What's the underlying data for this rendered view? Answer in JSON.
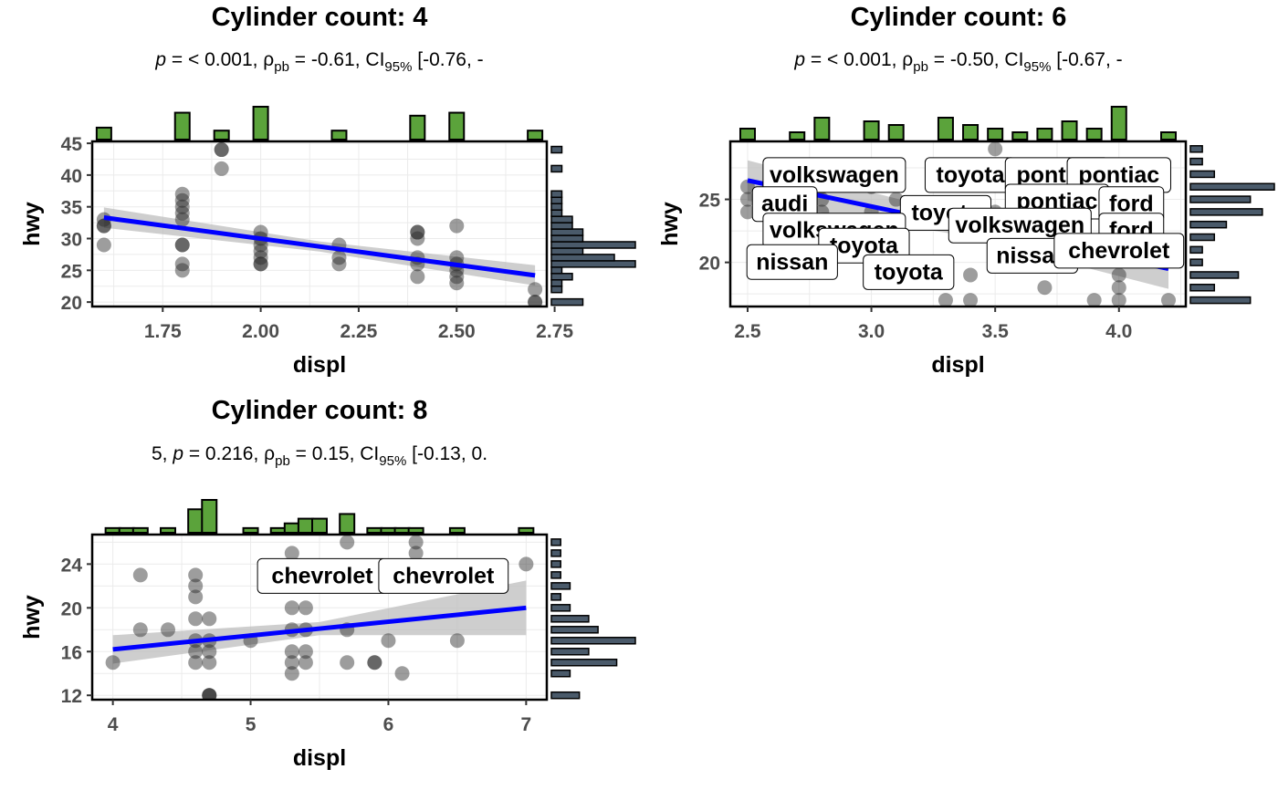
{
  "colors": {
    "points": "#262626",
    "fit_line": "#0000ff",
    "ci_band": "#bdbdbd",
    "x_histogram": "#5ba33b",
    "y_histogram": "#4a5a6a",
    "grid": "#ebebeb",
    "axis_text": "#4d4d4d"
  },
  "chart_data": [
    {
      "type": "scatter",
      "title": "Cylinder count: 4",
      "subtitle": {
        "prefix": "",
        "p": "< 0.001",
        "rho": "-0.61",
        "ci_lo": "-0.76",
        "ci_hi": "-"
      },
      "xlabel": "displ",
      "ylabel": "hwy",
      "xlim": [
        1.57,
        2.73
      ],
      "ylim": [
        19.3,
        45.3
      ],
      "xticks": [
        "1.75",
        "2.00",
        "2.25",
        "2.50",
        "2.75"
      ],
      "yticks": [
        "20",
        "25",
        "30",
        "35",
        "40",
        "45"
      ],
      "grid": true,
      "x": [
        1.6,
        1.6,
        1.6,
        1.6,
        1.8,
        1.8,
        1.8,
        1.8,
        1.8,
        1.8,
        1.8,
        1.8,
        1.8,
        1.9,
        1.9,
        1.9,
        2.0,
        2.0,
        2.0,
        2.0,
        2.0,
        2.0,
        2.0,
        2.2,
        2.2,
        2.2,
        2.4,
        2.4,
        2.4,
        2.4,
        2.4,
        2.4,
        2.5,
        2.5,
        2.5,
        2.5,
        2.5,
        2.5,
        2.7,
        2.7,
        2.7
      ],
      "y": [
        33,
        32,
        32,
        29,
        37,
        36,
        35,
        34,
        33,
        29,
        29,
        26,
        25,
        44,
        44,
        41,
        31,
        30,
        29,
        28,
        27,
        26,
        26,
        29,
        27,
        26,
        31,
        31,
        30,
        27,
        26,
        24,
        32,
        27,
        26,
        25,
        24,
        23,
        22,
        20,
        20
      ],
      "fit": {
        "x": [
          1.6,
          2.7
        ],
        "y": [
          33.3,
          24.2
        ],
        "ci_halfwidth": [
          1.6,
          0.8,
          1.6
        ]
      },
      "labels": [],
      "x_hist": [
        {
          "x": 1.6,
          "c": 4
        },
        {
          "x": 1.8,
          "c": 9
        },
        {
          "x": 1.9,
          "c": 3
        },
        {
          "x": 2.0,
          "c": 11
        },
        {
          "x": 2.2,
          "c": 3
        },
        {
          "x": 2.4,
          "c": 8
        },
        {
          "x": 2.5,
          "c": 9
        },
        {
          "x": 2.7,
          "c": 3
        }
      ],
      "y_hist": [
        {
          "y": 20,
          "c": 3
        },
        {
          "y": 22,
          "c": 1
        },
        {
          "y": 23,
          "c": 1
        },
        {
          "y": 24,
          "c": 2
        },
        {
          "y": 25,
          "c": 1
        },
        {
          "y": 26,
          "c": 8
        },
        {
          "y": 27,
          "c": 6
        },
        {
          "y": 28,
          "c": 3
        },
        {
          "y": 29,
          "c": 8
        },
        {
          "y": 30,
          "c": 3
        },
        {
          "y": 31,
          "c": 3
        },
        {
          "y": 32,
          "c": 2
        },
        {
          "y": 33,
          "c": 2
        },
        {
          "y": 34,
          "c": 1
        },
        {
          "y": 35,
          "c": 1
        },
        {
          "y": 36,
          "c": 1
        },
        {
          "y": 37,
          "c": 1
        },
        {
          "y": 41,
          "c": 1
        },
        {
          "y": 44,
          "c": 1
        }
      ]
    },
    {
      "type": "scatter",
      "title": "Cylinder count: 6",
      "subtitle": {
        "prefix": "",
        "p": "< 0.001",
        "rho": "-0.50",
        "ci_lo": "-0.67",
        "ci_hi": "-"
      },
      "xlabel": "displ",
      "ylabel": "hwy",
      "xlim": [
        2.43,
        4.27
      ],
      "ylim": [
        16.5,
        29.6
      ],
      "xticks": [
        "2.5",
        "3.0",
        "3.5",
        "4.0"
      ],
      "yticks": [
        "20",
        "25"
      ],
      "grid": true,
      "x": [
        2.5,
        2.5,
        2.5,
        2.6,
        2.7,
        2.8,
        2.8,
        2.8,
        2.8,
        3.0,
        3.0,
        3.1,
        3.1,
        3.3,
        3.3,
        3.3,
        3.4,
        3.4,
        3.5,
        3.5,
        3.5,
        3.7,
        3.8,
        3.8,
        3.9,
        4.0,
        4.0,
        4.0,
        4.0,
        4.2
      ],
      "y": [
        26,
        25,
        24,
        25,
        26,
        26,
        25,
        24,
        23,
        26,
        24,
        25,
        23,
        17,
        19,
        24,
        19,
        17,
        29,
        27,
        24,
        18,
        26,
        22,
        17,
        19,
        18,
        17,
        23,
        17
      ],
      "fit": {
        "x": [
          2.5,
          4.2
        ],
        "y": [
          26.5,
          19.5
        ],
        "ci_halfwidth": [
          1.6,
          0.8,
          1.6
        ]
      },
      "labels": [
        {
          "text": "volkswagen",
          "x": 2.85,
          "y": 27.0
        },
        {
          "text": "toyota",
          "x": 3.4,
          "y": 27.0
        },
        {
          "text": "pontiac",
          "x": 3.75,
          "y": 27.0
        },
        {
          "text": "pontiac",
          "x": 4.0,
          "y": 27.0
        },
        {
          "text": "audi",
          "x": 2.65,
          "y": 24.7
        },
        {
          "text": "pontiac",
          "x": 3.75,
          "y": 24.9
        },
        {
          "text": "ford",
          "x": 4.05,
          "y": 24.7
        },
        {
          "text": "toyota",
          "x": 3.3,
          "y": 24.0
        },
        {
          "text": "volkswagen",
          "x": 2.85,
          "y": 22.6
        },
        {
          "text": "volkswagen",
          "x": 3.6,
          "y": 23.0
        },
        {
          "text": "ford",
          "x": 4.05,
          "y": 22.6
        },
        {
          "text": "toyota",
          "x": 2.97,
          "y": 21.4
        },
        {
          "text": "nissan",
          "x": 2.68,
          "y": 20.1
        },
        {
          "text": "nissan",
          "x": 3.65,
          "y": 20.6
        },
        {
          "text": "chevrolet",
          "x": 4.0,
          "y": 21.0
        },
        {
          "text": "toyota",
          "x": 3.15,
          "y": 19.3
        }
      ],
      "x_hist": [
        {
          "x": 2.5,
          "c": 3
        },
        {
          "x": 2.7,
          "c": 2
        },
        {
          "x": 2.8,
          "c": 6
        },
        {
          "x": 3.0,
          "c": 5
        },
        {
          "x": 3.1,
          "c": 4
        },
        {
          "x": 3.3,
          "c": 6
        },
        {
          "x": 3.4,
          "c": 4
        },
        {
          "x": 3.5,
          "c": 3
        },
        {
          "x": 3.6,
          "c": 2
        },
        {
          "x": 3.7,
          "c": 3
        },
        {
          "x": 3.8,
          "c": 5
        },
        {
          "x": 3.9,
          "c": 3
        },
        {
          "x": 4.0,
          "c": 9
        },
        {
          "x": 4.2,
          "c": 2
        }
      ],
      "y_hist": [
        {
          "y": 17,
          "c": 5
        },
        {
          "y": 18,
          "c": 2
        },
        {
          "y": 19,
          "c": 4
        },
        {
          "y": 20,
          "c": 1
        },
        {
          "y": 21,
          "c": 1
        },
        {
          "y": 22,
          "c": 2
        },
        {
          "y": 23,
          "c": 3
        },
        {
          "y": 24,
          "c": 6
        },
        {
          "y": 25,
          "c": 5
        },
        {
          "y": 26,
          "c": 7
        },
        {
          "y": 27,
          "c": 2
        },
        {
          "y": 28,
          "c": 1
        },
        {
          "y": 29,
          "c": 1
        }
      ]
    },
    {
      "type": "scatter",
      "title": "Cylinder count: 8",
      "subtitle": {
        "prefix": "5, ",
        "p": "0.216",
        "rho": "0.15",
        "ci_lo": "-0.13",
        "ci_hi": "0."
      },
      "xlabel": "displ",
      "ylabel": "hwy",
      "xlim": [
        3.85,
        7.15
      ],
      "ylim": [
        11.6,
        26.7
      ],
      "xticks": [
        "4",
        "5",
        "6",
        "7"
      ],
      "yticks": [
        "12",
        "16",
        "20",
        "24"
      ],
      "grid": true,
      "x": [
        4.0,
        4.2,
        4.2,
        4.4,
        4.6,
        4.6,
        4.6,
        4.6,
        4.6,
        4.6,
        4.6,
        4.7,
        4.7,
        4.7,
        4.7,
        4.7,
        4.7,
        4.7,
        5.0,
        5.3,
        5.3,
        5.3,
        5.3,
        5.3,
        5.3,
        5.4,
        5.4,
        5.4,
        5.4,
        5.7,
        5.7,
        5.7,
        5.7,
        5.9,
        5.9,
        6.0,
        6.1,
        6.2,
        6.2,
        6.5,
        7.0
      ],
      "y": [
        15,
        23,
        18,
        18,
        23,
        22,
        21,
        19,
        17,
        16,
        15,
        19,
        17,
        16,
        15,
        12,
        12,
        12,
        17,
        25,
        20,
        18,
        16,
        15,
        14,
        20,
        18,
        16,
        15,
        26,
        23,
        18,
        15,
        15,
        15,
        17,
        14,
        25,
        26,
        17,
        24
      ],
      "fit": {
        "x": [
          4.0,
          7.0
        ],
        "y": [
          16.2,
          20.0
        ],
        "ci_halfwidth": [
          1.3,
          0.6,
          2.5
        ]
      },
      "labels": [
        {
          "text": "chevrolet",
          "x": 5.52,
          "y": 23.0
        },
        {
          "text": "chevrolet",
          "x": 6.4,
          "y": 23.0
        }
      ],
      "x_hist": [
        {
          "x": 4.0,
          "c": 1
        },
        {
          "x": 4.1,
          "c": 1
        },
        {
          "x": 4.2,
          "c": 1
        },
        {
          "x": 4.4,
          "c": 1
        },
        {
          "x": 4.6,
          "c": 5
        },
        {
          "x": 4.7,
          "c": 7
        },
        {
          "x": 5.0,
          "c": 1
        },
        {
          "x": 5.2,
          "c": 1
        },
        {
          "x": 5.3,
          "c": 2
        },
        {
          "x": 5.4,
          "c": 3
        },
        {
          "x": 5.5,
          "c": 3
        },
        {
          "x": 5.7,
          "c": 4
        },
        {
          "x": 5.9,
          "c": 1
        },
        {
          "x": 6.0,
          "c": 1
        },
        {
          "x": 6.1,
          "c": 1
        },
        {
          "x": 6.2,
          "c": 1
        },
        {
          "x": 6.5,
          "c": 1
        },
        {
          "x": 7.0,
          "c": 1
        }
      ],
      "y_hist": [
        {
          "y": 12,
          "c": 3
        },
        {
          "y": 14,
          "c": 2
        },
        {
          "y": 15,
          "c": 7
        },
        {
          "y": 16,
          "c": 4
        },
        {
          "y": 17,
          "c": 9
        },
        {
          "y": 18,
          "c": 5
        },
        {
          "y": 19,
          "c": 4
        },
        {
          "y": 20,
          "c": 2
        },
        {
          "y": 21,
          "c": 1
        },
        {
          "y": 22,
          "c": 2
        },
        {
          "y": 23,
          "c": 1
        },
        {
          "y": 24,
          "c": 1
        },
        {
          "y": 25,
          "c": 1
        },
        {
          "y": 26,
          "c": 1
        }
      ]
    }
  ]
}
